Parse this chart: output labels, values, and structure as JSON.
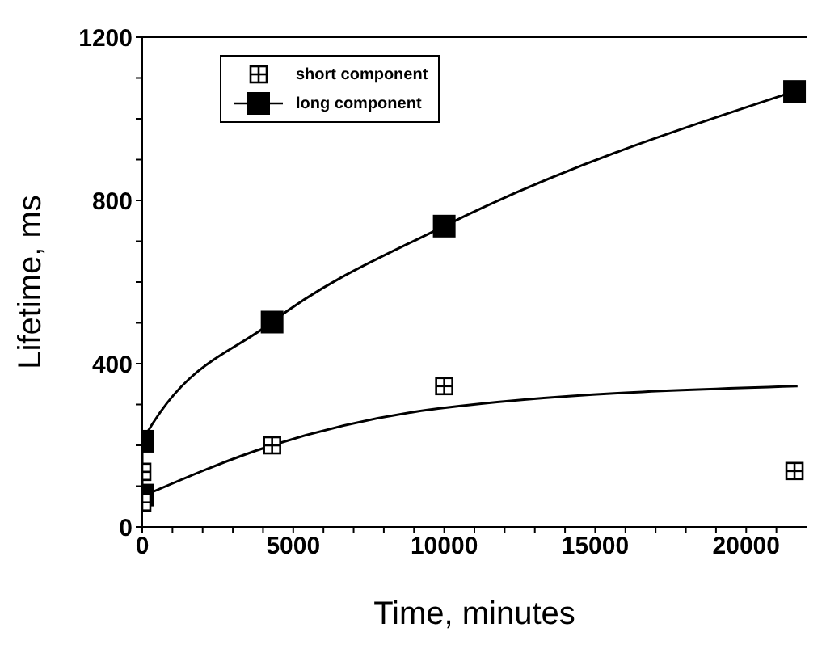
{
  "chart_data": {
    "type": "scatter",
    "xlabel": "Time, minutes",
    "ylabel": "Lifetime, ms",
    "xlim": [
      0,
      22000
    ],
    "ylim": [
      0,
      1200
    ],
    "xticks": [
      0,
      {
        "value": 1000,
        "label": null
      },
      {
        "value": 2000,
        "label": null
      },
      {
        "value": 3000,
        "label": null
      },
      {
        "value": 4000,
        "label": null
      },
      5000,
      {
        "value": 6000,
        "label": null
      },
      {
        "value": 7000,
        "label": null
      },
      {
        "value": 8000,
        "label": null
      },
      {
        "value": 9000,
        "label": null
      },
      10000,
      {
        "value": 11000,
        "label": null
      },
      {
        "value": 12000,
        "label": null
      },
      {
        "value": 13000,
        "label": null
      },
      {
        "value": 14000,
        "label": null
      },
      15000,
      {
        "value": 16000,
        "label": null
      },
      {
        "value": 17000,
        "label": null
      },
      {
        "value": 18000,
        "label": null
      },
      {
        "value": 19000,
        "label": null
      },
      20000,
      {
        "value": 21000,
        "label": null
      }
    ],
    "yticks": [
      0,
      {
        "value": 100,
        "label": null
      },
      {
        "value": 200,
        "label": null
      },
      {
        "value": 300,
        "label": null
      },
      400,
      {
        "value": 500,
        "label": null
      },
      {
        "value": 600,
        "label": null
      },
      {
        "value": 700,
        "label": null
      },
      800,
      {
        "value": 900,
        "label": null
      },
      {
        "value": 1000,
        "label": null
      },
      {
        "value": 1100,
        "label": null
      },
      1200
    ],
    "legend": "top left",
    "marker": "square",
    "series": [
      {
        "name": "short component",
        "color": "#000000",
        "x": [
          0,
          0,
          4300,
          10000,
          21600
        ],
        "values": [
          60,
          135,
          200,
          345,
          137
        ]
      },
      {
        "name": "long component",
        "type": "line",
        "color": "#000000",
        "x": [
          0,
          0,
          4300,
          10000,
          21600
        ],
        "values": [
          78,
          210,
          502,
          737,
          1067
        ]
      },
      {
        "type": "line",
        "marker": "none",
        "color": "#000000",
        "x": [
          0,
          4300,
          9800,
          21700
        ],
        "values": [
          75,
          200,
          290,
          345
        ]
      }
    ]
  }
}
